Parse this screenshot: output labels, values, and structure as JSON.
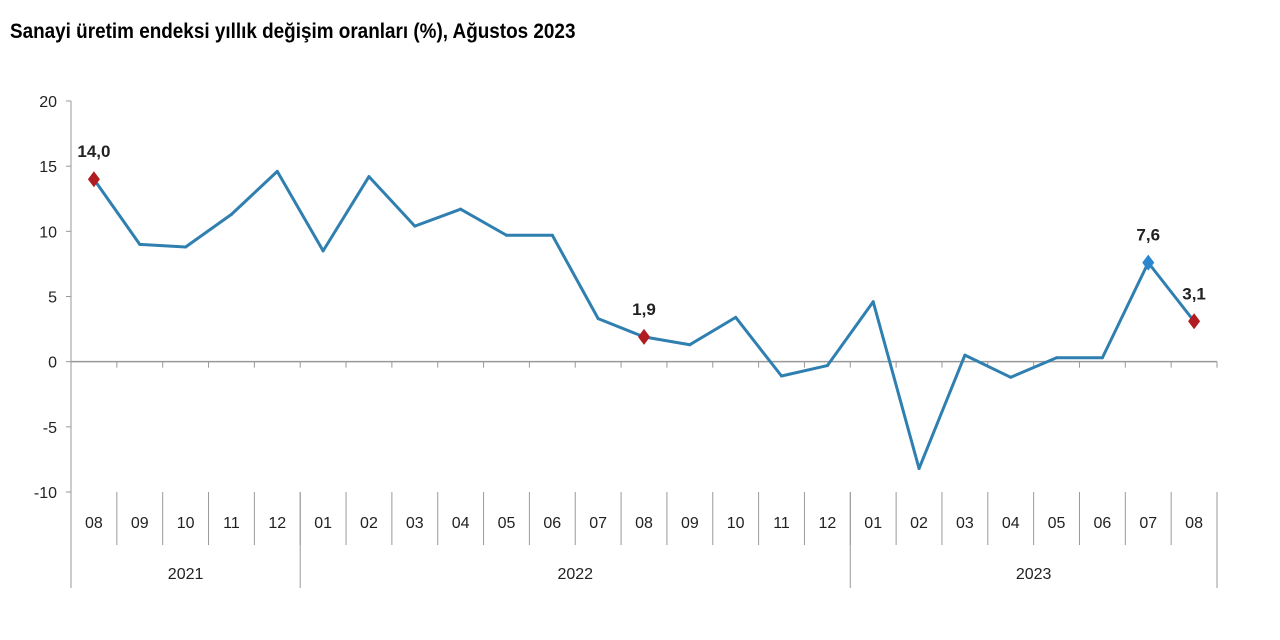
{
  "chart_data": {
    "type": "line",
    "title": "Sanayi üretim endeksi yıllık değişim oranları (%), Ağustos 2023",
    "ylim": [
      -10,
      20
    ],
    "yticks": [
      -10,
      -5,
      0,
      5,
      10,
      15,
      20
    ],
    "grid": false,
    "categories": [
      "08",
      "09",
      "10",
      "11",
      "12",
      "01",
      "02",
      "03",
      "04",
      "05",
      "06",
      "07",
      "08",
      "09",
      "10",
      "11",
      "12",
      "01",
      "02",
      "03",
      "04",
      "05",
      "06",
      "07",
      "08"
    ],
    "years": [
      {
        "label": "2021",
        "count": 5
      },
      {
        "label": "2022",
        "count": 12
      },
      {
        "label": "2023",
        "count": 8
      }
    ],
    "series": [
      {
        "values": [
          14.0,
          9.0,
          8.8,
          11.3,
          14.6,
          8.5,
          14.2,
          10.4,
          11.7,
          9.7,
          9.7,
          3.3,
          1.9,
          1.3,
          3.4,
          -1.1,
          -0.3,
          4.6,
          -8.2,
          0.5,
          -1.2,
          0.3,
          0.3,
          7.6,
          3.1
        ],
        "color": "#2f7fb0"
      }
    ],
    "annotations": [
      {
        "index": 0,
        "label": "14,0",
        "marker_color": "#b01c20"
      },
      {
        "index": 12,
        "label": "1,9",
        "marker_color": "#b01c20"
      },
      {
        "index": 23,
        "label": "7,6",
        "marker_color": "#2a86cf"
      },
      {
        "index": 24,
        "label": "3,1",
        "marker_color": "#b01c20"
      }
    ]
  }
}
